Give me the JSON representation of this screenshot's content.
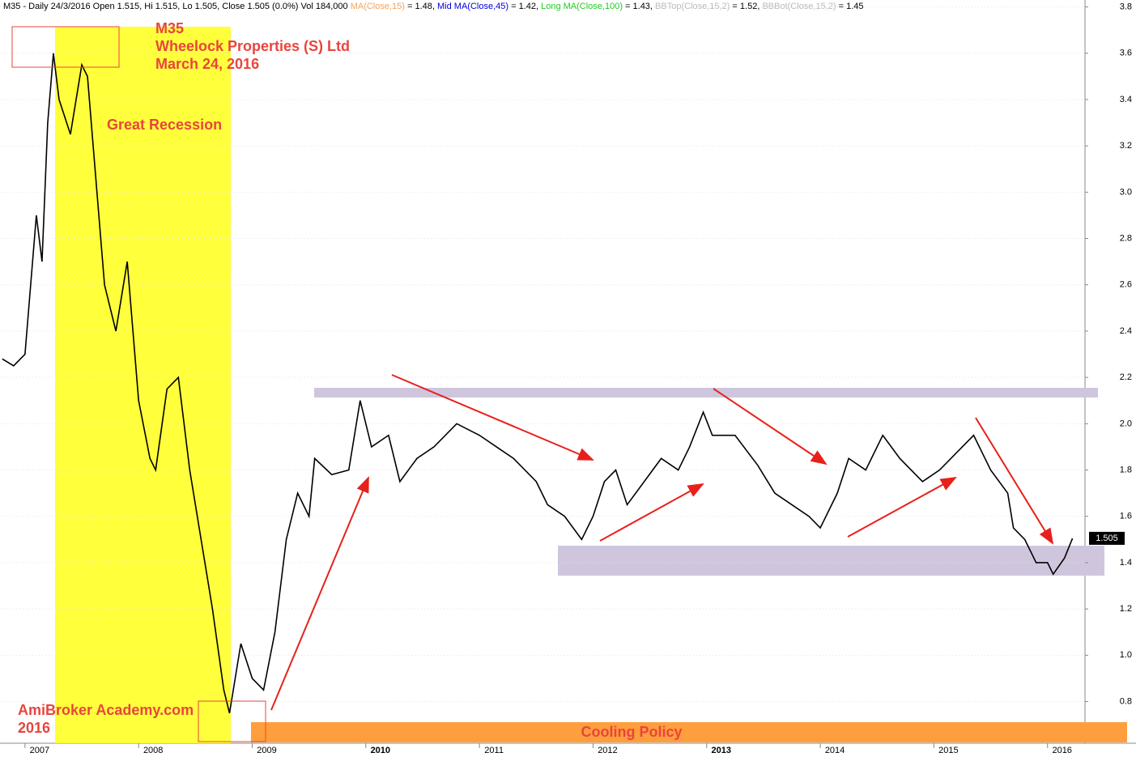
{
  "chart_data": {
    "type": "line",
    "header": [
      "M35 - Daily 24/3/2016 Open 1.515, Hi 1.515, Lo 1.505, Close 1.505 (0.0%) Vol 184,000",
      "MA(Close,15)",
      " = 1.48, ",
      "Mid MA(Close,45)",
      " = 1.42, ",
      "Long MA(Close,100)",
      " = 1.43, ",
      "BBTop(Close,15,2)",
      " = 1.52, ",
      "BBBot(Close,15,2)",
      " = 1.45"
    ],
    "annotations": [
      "M35",
      "Wheelock Properties (S) Ltd",
      "March 24, 2016",
      "Great Recession",
      "AmiBroker Academy.com",
      "2016",
      "Cooling Policy"
    ],
    "series": [
      {
        "name": "M35",
        "color": "#000000",
        "x": [
          2006.8,
          2006.9,
          2007.0,
          2007.1,
          2007.15,
          2007.2,
          2007.25,
          2007.3,
          2007.4,
          2007.5,
          2007.55,
          2007.6,
          2007.7,
          2007.8,
          2007.9,
          2008.0,
          2008.1,
          2008.15,
          2008.25,
          2008.35,
          2008.45,
          2008.55,
          2008.65,
          2008.75,
          2008.8,
          2008.9,
          2009.0,
          2009.1,
          2009.2,
          2009.3,
          2009.4,
          2009.5,
          2009.55,
          2009.7,
          2009.85,
          2009.95,
          2010.05,
          2010.2,
          2010.3,
          2010.45,
          2010.6,
          2010.8,
          2011.0,
          2011.15,
          2011.3,
          2011.5,
          2011.6,
          2011.75,
          2011.9,
          2012.0,
          2012.1,
          2012.2,
          2012.3,
          2012.45,
          2012.6,
          2012.75,
          2012.85,
          2012.97,
          2013.05,
          2013.25,
          2013.45,
          2013.6,
          2013.75,
          2013.9,
          2014.0,
          2014.15,
          2014.25,
          2014.4,
          2014.55,
          2014.7,
          2014.9,
          2015.05,
          2015.25,
          2015.35,
          2015.5,
          2015.65,
          2015.7,
          2015.8,
          2015.9,
          2016.0,
          2016.05,
          2016.15,
          2016.22
        ],
        "values": [
          2.28,
          2.25,
          2.3,
          2.9,
          2.7,
          3.3,
          3.6,
          3.4,
          3.25,
          3.55,
          3.5,
          3.2,
          2.6,
          2.4,
          2.7,
          2.1,
          1.85,
          1.8,
          2.15,
          2.2,
          1.8,
          1.5,
          1.2,
          0.85,
          0.75,
          1.05,
          0.9,
          0.85,
          1.1,
          1.5,
          1.7,
          1.6,
          1.85,
          1.78,
          1.8,
          2.1,
          1.9,
          1.95,
          1.75,
          1.85,
          1.9,
          2.0,
          1.95,
          1.9,
          1.85,
          1.75,
          1.65,
          1.6,
          1.5,
          1.6,
          1.75,
          1.8,
          1.65,
          1.75,
          1.85,
          1.8,
          1.9,
          2.05,
          1.95,
          1.95,
          1.82,
          1.7,
          1.65,
          1.6,
          1.55,
          1.7,
          1.85,
          1.8,
          1.95,
          1.85,
          1.75,
          1.8,
          1.9,
          1.95,
          1.8,
          1.7,
          1.55,
          1.5,
          1.4,
          1.4,
          1.35,
          1.42,
          1.505
        ]
      }
    ],
    "xlim": [
      2006.78,
      2016.33
    ],
    "xticks": [
      2007,
      2008,
      2009,
      2010,
      2011,
      2012,
      2013,
      2014,
      2015,
      2016
    ],
    "ylim": [
      0.62,
      3.83
    ],
    "yticks": [
      0.8,
      {
        "value": 1,
        "label": "1.0"
      },
      1.2,
      1.4,
      1.6,
      1.8,
      {
        "value": 2,
        "label": "2.0"
      },
      2.2,
      2.4,
      2.6,
      2.8,
      {
        "value": 3,
        "label": "3.0"
      },
      3.2,
      3.4,
      3.6,
      3.8
    ]
  }
}
